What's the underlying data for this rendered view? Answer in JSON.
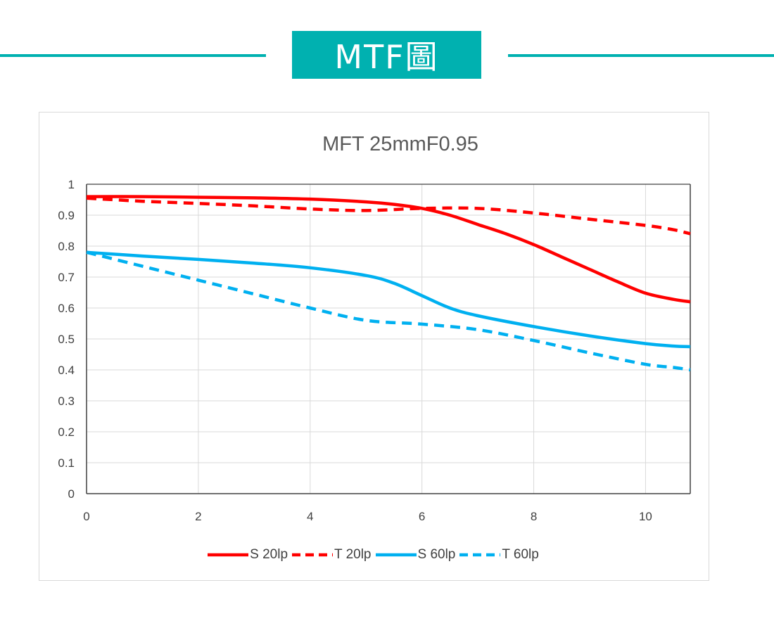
{
  "header": {
    "title": "MTF圖",
    "accent_color": "#00b1b0"
  },
  "chart_data": {
    "type": "line",
    "title": "MFT  25mmF0.95",
    "xlabel": "",
    "ylabel": "",
    "xlim": [
      0,
      10.8
    ],
    "ylim": [
      0,
      1
    ],
    "xticks": [
      "0",
      "2",
      "4",
      "6",
      "8",
      "10"
    ],
    "yticks": [
      "0",
      "0.1",
      "0.2",
      "0.3",
      "0.4",
      "0.5",
      "0.6",
      "0.7",
      "0.8",
      "0.9",
      "1"
    ],
    "grid": true,
    "legend_position": "bottom",
    "series": [
      {
        "name": "S 20lp",
        "color": "#ff0000",
        "dash": "solid",
        "x": [
          0,
          1,
          2,
          3,
          4,
          5,
          5.5,
          6,
          6.5,
          7,
          7.5,
          8,
          8.5,
          9,
          9.5,
          10,
          10.5,
          10.8
        ],
        "y": [
          0.96,
          0.96,
          0.958,
          0.956,
          0.952,
          0.943,
          0.935,
          0.922,
          0.9,
          0.87,
          0.84,
          0.805,
          0.765,
          0.725,
          0.685,
          0.648,
          0.628,
          0.62
        ]
      },
      {
        "name": "T 20lp",
        "color": "#ff0000",
        "dash": "dashed",
        "x": [
          0,
          1,
          2,
          3,
          4,
          5,
          6,
          7,
          8,
          9,
          10,
          10.5,
          10.8
        ],
        "y": [
          0.955,
          0.945,
          0.938,
          0.93,
          0.92,
          0.915,
          0.922,
          0.922,
          0.907,
          0.887,
          0.867,
          0.853,
          0.84
        ]
      },
      {
        "name": "S 60lp",
        "color": "#00b0f0",
        "dash": "solid",
        "x": [
          0,
          1,
          2,
          3,
          4,
          5,
          5.5,
          6,
          6.5,
          7,
          8,
          9,
          10,
          10.5,
          10.8
        ],
        "y": [
          0.78,
          0.768,
          0.757,
          0.745,
          0.73,
          0.705,
          0.68,
          0.64,
          0.6,
          0.575,
          0.54,
          0.51,
          0.485,
          0.477,
          0.475
        ]
      },
      {
        "name": "T 60lp",
        "color": "#00b0f0",
        "dash": "dashed",
        "x": [
          0,
          1,
          2,
          3,
          4,
          5,
          6,
          7,
          8,
          9,
          10,
          10.5,
          10.8
        ],
        "y": [
          0.78,
          0.735,
          0.69,
          0.645,
          0.6,
          0.56,
          0.548,
          0.53,
          0.495,
          0.455,
          0.418,
          0.408,
          0.4
        ]
      }
    ]
  }
}
